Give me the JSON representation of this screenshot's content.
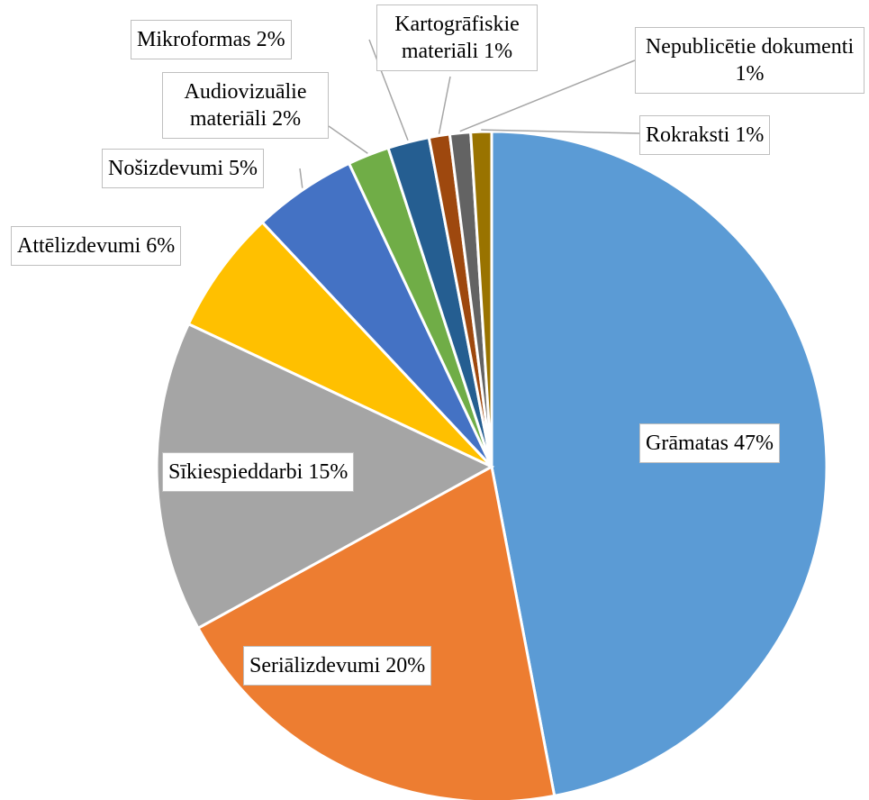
{
  "chart_data": {
    "type": "pie",
    "categories": [
      "Grāmatas",
      "Seriālizdevumi",
      "Sīkiespieddarbi",
      "Attēlizdevumi",
      "Nošizdevumi",
      "Audiovizuālie materiāli",
      "Mikroformas",
      "Kartogrāfiskie materiāli",
      "Nepublicētie dokumenti",
      "Rokraksti"
    ],
    "values": [
      47,
      20,
      15,
      6,
      5,
      2,
      2,
      1,
      1,
      1
    ],
    "value_labels": [
      "47%",
      "20%",
      "15%",
      "6%",
      "5%",
      "2%",
      "2%",
      "1%",
      "1%",
      "1%"
    ],
    "colors": [
      "#5b9bd5",
      "#ed7d31",
      "#a5a5a5",
      "#ffc000",
      "#4472c4",
      "#70ad47",
      "#255e91",
      "#9e480e",
      "#636363",
      "#997300"
    ]
  }
}
